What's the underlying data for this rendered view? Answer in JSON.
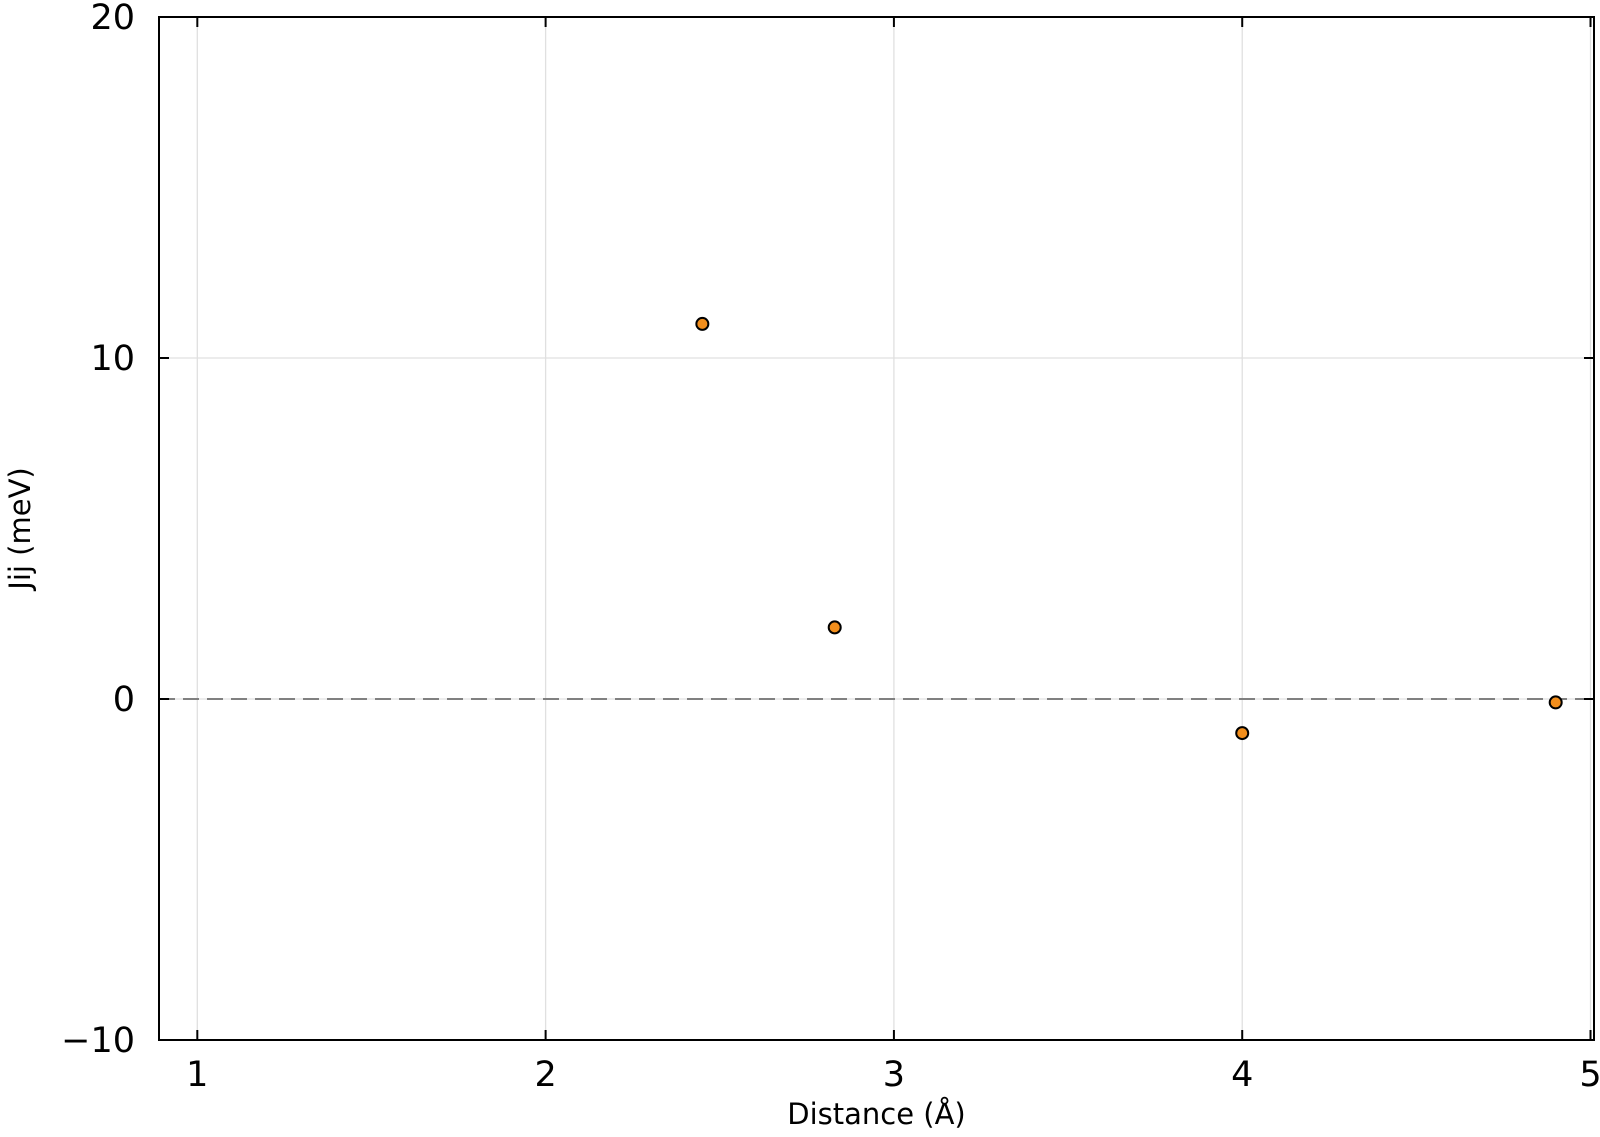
{
  "chart_data": {
    "type": "scatter",
    "title": "",
    "xlabel": "Distance (Å)",
    "ylabel": "Jij (meV)",
    "xlim": [
      0.89,
      5.01
    ],
    "ylim": [
      -10,
      20
    ],
    "x_ticks": [
      1,
      2,
      3,
      4,
      5
    ],
    "x_tick_labels": [
      "1",
      "2",
      "3",
      "4",
      "5"
    ],
    "y_ticks": [
      -10,
      0,
      10,
      20
    ],
    "y_tick_labels": [
      "−10",
      "0",
      "10",
      "20"
    ],
    "grid": true,
    "legend": "none",
    "reference_line": {
      "y": 0,
      "style": "dashed"
    },
    "series": [
      {
        "x": [
          2.45,
          2.83,
          4.0,
          4.9
        ],
        "y": [
          11.0,
          2.1,
          -1.0,
          -0.1
        ],
        "marker_color": "#f28e1c",
        "marker_edge_color": "#000000"
      }
    ],
    "colors": {
      "grid": "#e0e0e0",
      "axes": "#000000",
      "reference_line": "#808080"
    }
  }
}
